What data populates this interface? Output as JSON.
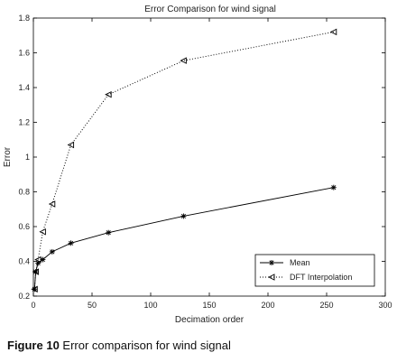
{
  "chart_data": {
    "type": "line",
    "title": "Error Comparison for wind signal",
    "xlabel": "Decimation order",
    "ylabel": "Error",
    "xlim": [
      0,
      300
    ],
    "ylim": [
      0.2,
      1.8
    ],
    "xticks": [
      0,
      50,
      100,
      150,
      200,
      250,
      300
    ],
    "yticks": [
      0.2,
      0.4,
      0.6,
      0.8,
      1,
      1.2,
      1.4,
      1.6,
      1.8
    ],
    "grid": false,
    "legend_position": "bottom-right",
    "series": [
      {
        "name": "Mean",
        "line_style": "solid",
        "marker": "star",
        "x": [
          1,
          2,
          4,
          8,
          16,
          32,
          64,
          128,
          256
        ],
        "y": [
          0.24,
          0.34,
          0.39,
          0.41,
          0.455,
          0.505,
          0.565,
          0.66,
          0.825
        ]
      },
      {
        "name": "DFT Interpolation",
        "line_style": "dotted",
        "marker": "triangle-left",
        "x": [
          1,
          2,
          4,
          8,
          16,
          32,
          64,
          128,
          256
        ],
        "y": [
          0.24,
          0.34,
          0.41,
          0.57,
          0.73,
          1.07,
          1.36,
          1.555,
          1.72
        ]
      }
    ]
  },
  "caption": {
    "figure_number": "Figure 10",
    "text": "Error comparison for wind signal"
  }
}
